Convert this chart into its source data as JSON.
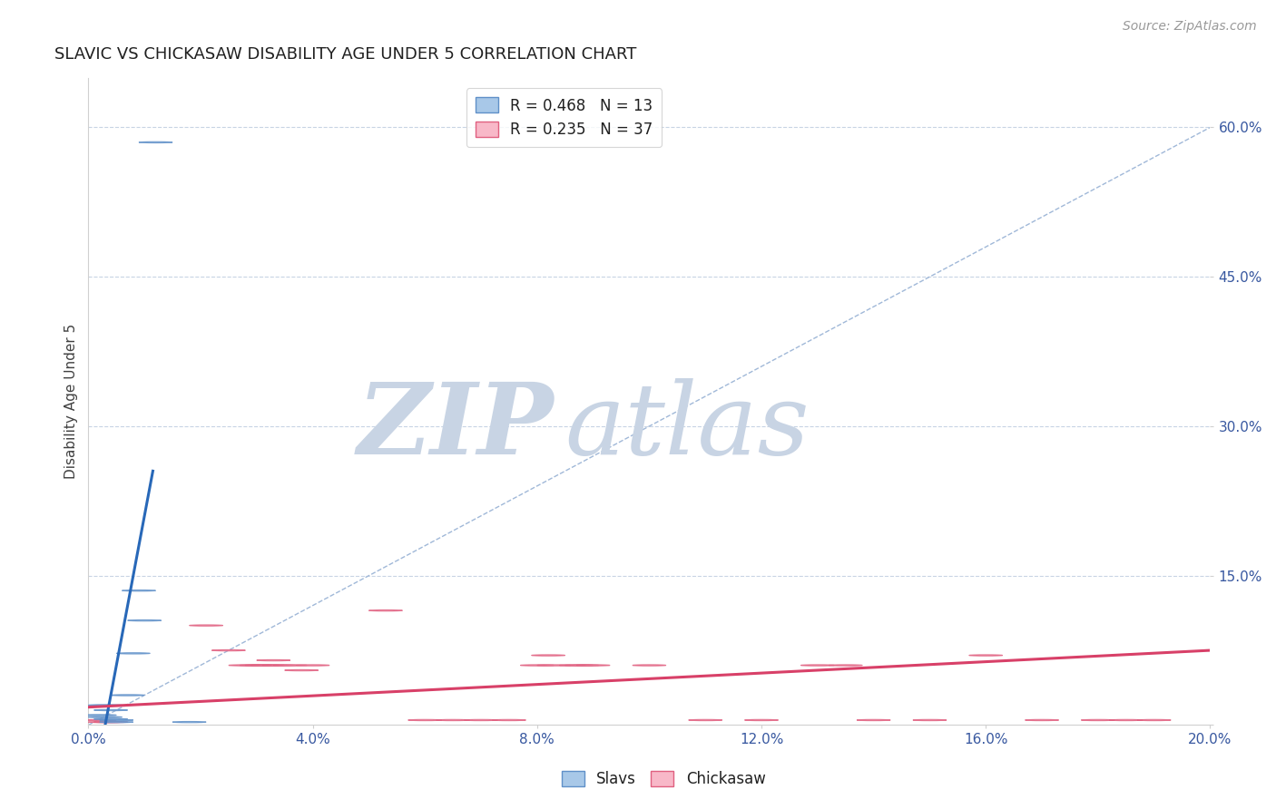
{
  "title": "SLAVIC VS CHICKASAW DISABILITY AGE UNDER 5 CORRELATION CHART",
  "source": "Source: ZipAtlas.com",
  "ylabel": "Disability Age Under 5",
  "xmin": 0.0,
  "xmax": 0.2,
  "ymin": 0.0,
  "ymax": 0.65,
  "yticks": [
    0.0,
    0.15,
    0.3,
    0.45,
    0.6
  ],
  "xticks": [
    0.0,
    0.04,
    0.08,
    0.12,
    0.16,
    0.2
  ],
  "xtick_labels": [
    "0.0%",
    "4.0%",
    "8.0%",
    "12.0%",
    "16.0%",
    "20.0%"
  ],
  "ytick_labels": [
    "",
    "15.0%",
    "30.0%",
    "45.0%",
    "60.0%"
  ],
  "legend_entries": [
    {
      "label": "R = 0.468   N = 13",
      "color": "#a8c8e8"
    },
    {
      "label": "R = 0.235   N = 37",
      "color": "#f8b8c8"
    }
  ],
  "slavs_points": [
    [
      0.012,
      0.585
    ],
    [
      0.009,
      0.135
    ],
    [
      0.01,
      0.105
    ],
    [
      0.008,
      0.072
    ],
    [
      0.007,
      0.03
    ],
    [
      0.003,
      0.02
    ],
    [
      0.004,
      0.015
    ],
    [
      0.002,
      0.01
    ],
    [
      0.003,
      0.008
    ],
    [
      0.004,
      0.006
    ],
    [
      0.005,
      0.005
    ],
    [
      0.005,
      0.003
    ],
    [
      0.018,
      0.003
    ]
  ],
  "chickasaw_points": [
    [
      0.002,
      0.005
    ],
    [
      0.003,
      0.003
    ],
    [
      0.004,
      0.003
    ],
    [
      0.021,
      0.1
    ],
    [
      0.025,
      0.075
    ],
    [
      0.028,
      0.06
    ],
    [
      0.03,
      0.06
    ],
    [
      0.031,
      0.06
    ],
    [
      0.032,
      0.06
    ],
    [
      0.033,
      0.065
    ],
    [
      0.034,
      0.06
    ],
    [
      0.036,
      0.06
    ],
    [
      0.038,
      0.055
    ],
    [
      0.04,
      0.06
    ],
    [
      0.053,
      0.115
    ],
    [
      0.06,
      0.005
    ],
    [
      0.065,
      0.005
    ],
    [
      0.07,
      0.005
    ],
    [
      0.075,
      0.005
    ],
    [
      0.08,
      0.06
    ],
    [
      0.082,
      0.07
    ],
    [
      0.083,
      0.06
    ],
    [
      0.087,
      0.06
    ],
    [
      0.088,
      0.06
    ],
    [
      0.09,
      0.06
    ],
    [
      0.1,
      0.06
    ],
    [
      0.11,
      0.005
    ],
    [
      0.12,
      0.005
    ],
    [
      0.13,
      0.06
    ],
    [
      0.135,
      0.06
    ],
    [
      0.14,
      0.005
    ],
    [
      0.15,
      0.005
    ],
    [
      0.16,
      0.07
    ],
    [
      0.17,
      0.005
    ],
    [
      0.18,
      0.005
    ],
    [
      0.185,
      0.005
    ],
    [
      0.19,
      0.005
    ]
  ],
  "slavs_color": "#a8c8e8",
  "slavs_edge_color": "#6090c8",
  "chickasaw_color": "#f8b8c8",
  "chickasaw_edge_color": "#e06080",
  "blue_line_color": "#2868b8",
  "pink_line_color": "#d84068",
  "diagonal_line_color": "#a0b8d8",
  "grid_color": "#c8d4e4",
  "title_color": "#202020",
  "axis_label_color": "#404040",
  "tick_label_color": "#3858a0",
  "watermark_zip_color": "#c8d4e4",
  "watermark_atlas_color": "#c8d4e4",
  "background_color": "#ffffff",
  "blue_trend_x": [
    0.003,
    0.0115
  ],
  "blue_trend_y": [
    0.0,
    0.255
  ],
  "pink_trend_x": [
    0.0,
    0.2
  ],
  "pink_trend_y": [
    0.018,
    0.075
  ]
}
